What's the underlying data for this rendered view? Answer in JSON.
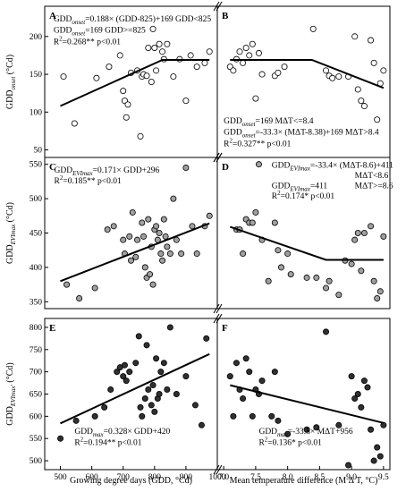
{
  "chart_data": [
    {
      "panel": "A",
      "type": "scatter",
      "row": 0,
      "col": 0,
      "xlim": [
        450,
        1000
      ],
      "ylim": [
        40,
        240
      ],
      "xticks": [],
      "yticks": [
        50,
        100,
        150,
        200
      ],
      "ylabel": "GDD_onset (°Cd)",
      "ylabel_main": "GDD",
      "ylabel_sub": "onset",
      "ylabel_unit": " (°Cd)",
      "points": [
        [
          510,
          147
        ],
        [
          545,
          85
        ],
        [
          615,
          145
        ],
        [
          655,
          160
        ],
        [
          690,
          175
        ],
        [
          700,
          128
        ],
        [
          705,
          115
        ],
        [
          710,
          93
        ],
        [
          715,
          110
        ],
        [
          725,
          152
        ],
        [
          745,
          155
        ],
        [
          755,
          68
        ],
        [
          760,
          147
        ],
        [
          765,
          150
        ],
        [
          775,
          148
        ],
        [
          780,
          185
        ],
        [
          790,
          140
        ],
        [
          795,
          210
        ],
        [
          800,
          185
        ],
        [
          805,
          155
        ],
        [
          815,
          190
        ],
        [
          825,
          180
        ],
        [
          830,
          170
        ],
        [
          840,
          190
        ],
        [
          860,
          147
        ],
        [
          880,
          170
        ],
        [
          900,
          115
        ],
        [
          915,
          175
        ],
        [
          935,
          160
        ],
        [
          960,
          165
        ],
        [
          975,
          180
        ]
      ],
      "fit": [
        [
          500,
          108
        ],
        [
          825,
          169
        ],
        [
          975,
          169
        ]
      ],
      "annotations": [
        {
          "text": "GDDonset=0.188× (GDD-825)+169   GDD<825",
          "x": 478,
          "y": 220
        },
        {
          "text": "GDDonset=169                    GDD>=825",
          "x": 478,
          "y": 205
        },
        {
          "text": "R²=0.268** p<0.01",
          "x": 478,
          "y": 190
        }
      ]
    },
    {
      "panel": "B",
      "type": "scatter",
      "row": 0,
      "col": 1,
      "xlim": [
        6.9,
        9.6
      ],
      "ylim": [
        40,
        240
      ],
      "xticks": [],
      "yticks": [],
      "points": [
        [
          7.1,
          160
        ],
        [
          7.15,
          155
        ],
        [
          7.2,
          170
        ],
        [
          7.25,
          180
        ],
        [
          7.3,
          165
        ],
        [
          7.35,
          185
        ],
        [
          7.4,
          175
        ],
        [
          7.45,
          190
        ],
        [
          7.5,
          118
        ],
        [
          7.55,
          178
        ],
        [
          7.6,
          150
        ],
        [
          7.8,
          148
        ],
        [
          7.85,
          152
        ],
        [
          7.95,
          160
        ],
        [
          8.4,
          210
        ],
        [
          8.6,
          155
        ],
        [
          8.65,
          148
        ],
        [
          8.7,
          145
        ],
        [
          8.8,
          147
        ],
        [
          8.95,
          147
        ],
        [
          9.05,
          200
        ],
        [
          9.1,
          130
        ],
        [
          9.15,
          115
        ],
        [
          9.2,
          108
        ],
        [
          9.3,
          195
        ],
        [
          9.35,
          165
        ],
        [
          9.4,
          90
        ],
        [
          9.45,
          138
        ],
        [
          9.5,
          155
        ]
      ],
      "fit": [
        [
          7.1,
          169
        ],
        [
          8.38,
          169
        ],
        [
          9.5,
          132
        ]
      ],
      "annotations": [
        {
          "text": "GDDonset=169          MΔT<=8.4",
          "x": 7.0,
          "y": 85
        },
        {
          "text": "GDDonset=-33.3× (MΔT-8.38)+169  MΔT>8.4",
          "x": 7.0,
          "y": 70
        },
        {
          "text": "R²=0.327** p<0.01",
          "x": 7.0,
          "y": 55
        }
      ]
    },
    {
      "panel": "C",
      "type": "scatter",
      "row": 1,
      "col": 0,
      "xlim": [
        450,
        1000
      ],
      "ylim": [
        340,
        560
      ],
      "xticks": [],
      "yticks": [
        350,
        400,
        450,
        500,
        550
      ],
      "ylabel": "GDD_EVImax (°Cd)",
      "ylabel_main": "GDD",
      "ylabel_sub": "EVImax",
      "ylabel_unit": " (°Cd)",
      "points": [
        [
          520,
          375
        ],
        [
          560,
          355
        ],
        [
          610,
          370
        ],
        [
          650,
          455
        ],
        [
          670,
          460
        ],
        [
          700,
          440
        ],
        [
          705,
          420
        ],
        [
          720,
          445
        ],
        [
          725,
          410
        ],
        [
          730,
          480
        ],
        [
          740,
          415
        ],
        [
          745,
          440
        ],
        [
          760,
          465
        ],
        [
          765,
          445
        ],
        [
          770,
          400
        ],
        [
          775,
          385
        ],
        [
          780,
          470
        ],
        [
          785,
          390
        ],
        [
          790,
          430
        ],
        [
          795,
          375
        ],
        [
          800,
          455
        ],
        [
          805,
          460
        ],
        [
          810,
          440
        ],
        [
          815,
          450
        ],
        [
          820,
          420
        ],
        [
          825,
          410
        ],
        [
          830,
          470
        ],
        [
          835,
          445
        ],
        [
          840,
          430
        ],
        [
          850,
          420
        ],
        [
          860,
          500
        ],
        [
          870,
          440
        ],
        [
          885,
          420
        ],
        [
          900,
          545
        ],
        [
          920,
          460
        ],
        [
          935,
          420
        ],
        [
          960,
          460
        ],
        [
          975,
          475
        ]
      ],
      "fit": [
        [
          500,
          380
        ],
        [
          975,
          464
        ]
      ],
      "annotations": [
        {
          "text": "GDDEVImax=0.171× GDD+296",
          "x": 480,
          "y": 538
        },
        {
          "text": "R²=0.185** p<0.01",
          "x": 480,
          "y": 522
        }
      ]
    },
    {
      "panel": "D",
      "type": "scatter",
      "row": 1,
      "col": 1,
      "xlim": [
        6.9,
        9.6
      ],
      "ylim": [
        340,
        560
      ],
      "xticks": [],
      "yticks": [],
      "points": [
        [
          7.2,
          455
        ],
        [
          7.25,
          455
        ],
        [
          7.3,
          420
        ],
        [
          7.35,
          470
        ],
        [
          7.4,
          465
        ],
        [
          7.45,
          465
        ],
        [
          7.5,
          480
        ],
        [
          7.55,
          550
        ],
        [
          7.6,
          440
        ],
        [
          7.7,
          380
        ],
        [
          7.8,
          465
        ],
        [
          7.85,
          425
        ],
        [
          7.9,
          400
        ],
        [
          8.0,
          420
        ],
        [
          8.05,
          390
        ],
        [
          8.3,
          385
        ],
        [
          8.45,
          385
        ],
        [
          8.6,
          370
        ],
        [
          8.65,
          380
        ],
        [
          8.8,
          360
        ],
        [
          8.9,
          410
        ],
        [
          9.0,
          405
        ],
        [
          9.05,
          440
        ],
        [
          9.1,
          450
        ],
        [
          9.15,
          395
        ],
        [
          9.2,
          450
        ],
        [
          9.3,
          460
        ],
        [
          9.35,
          380
        ],
        [
          9.4,
          355
        ],
        [
          9.45,
          365
        ],
        [
          9.5,
          445
        ]
      ],
      "fit": [
        [
          7.1,
          459
        ],
        [
          8.6,
          411
        ],
        [
          9.5,
          411
        ]
      ],
      "annotations": [
        {
          "text": "GDDEVImax=-33.4× (MΔT-8.6)+411",
          "x": 7.75,
          "y": 545
        },
        {
          "text": "MΔT<8.6",
          "x": 9.05,
          "y": 530
        },
        {
          "text": "GDDEVImax=411",
          "x": 7.75,
          "y": 515
        },
        {
          "text": "MΔT>=8.6",
          "x": 9.05,
          "y": 515
        },
        {
          "text": "R²=0.174* p<0.01",
          "x": 7.75,
          "y": 500
        }
      ]
    },
    {
      "panel": "E",
      "type": "scatter",
      "row": 2,
      "col": 0,
      "xlim": [
        450,
        1000
      ],
      "ylim": [
        480,
        820
      ],
      "xticks": [
        500,
        600,
        700,
        800,
        900,
        1000
      ],
      "yticks": [
        500,
        550,
        600,
        650,
        700,
        750,
        800
      ],
      "ylabel": "GDD_EVImax' (°Cd)",
      "ylabel_main": "GDD",
      "ylabel_sub": "EVImax'",
      "ylabel_unit": " (°Cd)",
      "points": [
        [
          500,
          550
        ],
        [
          550,
          590
        ],
        [
          610,
          600
        ],
        [
          640,
          620
        ],
        [
          660,
          660
        ],
        [
          680,
          700
        ],
        [
          690,
          710
        ],
        [
          700,
          690
        ],
        [
          705,
          715
        ],
        [
          710,
          680
        ],
        [
          720,
          700
        ],
        [
          740,
          720
        ],
        [
          750,
          780
        ],
        [
          755,
          620
        ],
        [
          760,
          600
        ],
        [
          770,
          640
        ],
        [
          775,
          760
        ],
        [
          780,
          660
        ],
        [
          790,
          625
        ],
        [
          795,
          670
        ],
        [
          800,
          610
        ],
        [
          805,
          730
        ],
        [
          810,
          640
        ],
        [
          815,
          650
        ],
        [
          820,
          700
        ],
        [
          830,
          720
        ],
        [
          840,
          660
        ],
        [
          850,
          800
        ],
        [
          870,
          650
        ],
        [
          900,
          690
        ],
        [
          930,
          625
        ],
        [
          950,
          580
        ],
        [
          965,
          775
        ]
      ],
      "fit": [
        [
          500,
          584
        ],
        [
          975,
          740
        ]
      ],
      "annotations": [
        {
          "text": "GDDmax=0.328× GDD+420",
          "x": 545,
          "y": 560
        },
        {
          "text": "R²=0.194** p<0.01",
          "x": 545,
          "y": 535
        }
      ],
      "xlabel": "Growing degree days (GDD, °Cd)"
    },
    {
      "panel": "F",
      "type": "scatter",
      "row": 2,
      "col": 1,
      "xlim": [
        6.9,
        9.6
      ],
      "ylim": [
        480,
        820
      ],
      "xticks": [
        7.0,
        7.5,
        8.0,
        8.5,
        9.0,
        9.5
      ],
      "yticks": [],
      "points": [
        [
          7.1,
          690
        ],
        [
          7.15,
          600
        ],
        [
          7.2,
          720
        ],
        [
          7.25,
          660
        ],
        [
          7.3,
          640
        ],
        [
          7.35,
          730
        ],
        [
          7.4,
          700
        ],
        [
          7.45,
          600
        ],
        [
          7.5,
          660
        ],
        [
          7.55,
          650
        ],
        [
          7.6,
          680
        ],
        [
          7.75,
          600
        ],
        [
          7.8,
          700
        ],
        [
          7.85,
          590
        ],
        [
          8.0,
          560
        ],
        [
          8.3,
          570
        ],
        [
          8.45,
          575
        ],
        [
          8.6,
          790
        ],
        [
          8.8,
          580
        ],
        [
          8.95,
          490
        ],
        [
          9.0,
          690
        ],
        [
          9.05,
          640
        ],
        [
          9.1,
          650
        ],
        [
          9.15,
          620
        ],
        [
          9.2,
          680
        ],
        [
          9.25,
          665
        ],
        [
          9.3,
          570
        ],
        [
          9.35,
          500
        ],
        [
          9.4,
          530
        ],
        [
          9.45,
          510
        ],
        [
          9.5,
          580
        ]
      ],
      "fit": [
        [
          7.1,
          670
        ],
        [
          9.5,
          585
        ]
      ],
      "annotations": [
        {
          "text": "GDDmax=-33.8× MΔT+956",
          "x": 7.55,
          "y": 560
        },
        {
          "text": "R²=0.136* p<0.01",
          "x": 7.55,
          "y": 535
        }
      ],
      "xlabel": "Mean temperature difference (M Δ T, °C)"
    }
  ]
}
